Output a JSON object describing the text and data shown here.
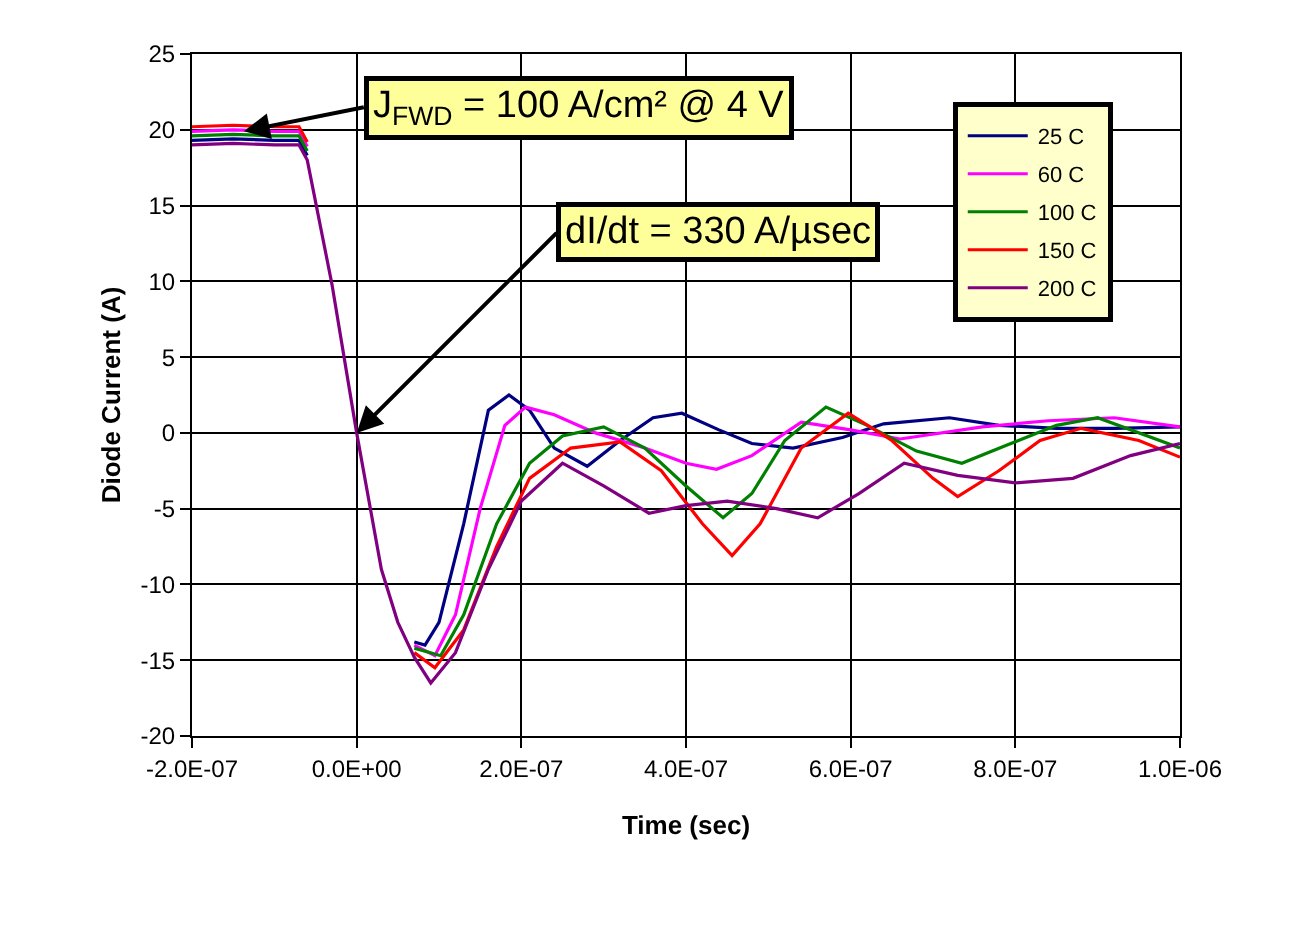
{
  "chart_data": {
    "type": "line",
    "xlabel": "Time (sec)",
    "ylabel": "Diode Current (A)",
    "xlim": [
      -2e-07,
      1e-06
    ],
    "xticks": [
      {
        "value": -2e-07,
        "label": "-2.0E-07"
      },
      {
        "value": 0,
        "label": "0.0E+00"
      },
      {
        "value": 2e-07,
        "label": "2.0E-07"
      },
      {
        "value": 4e-07,
        "label": "4.0E-07"
      },
      {
        "value": 6e-07,
        "label": "6.0E-07"
      },
      {
        "value": 8e-07,
        "label": "8.0E-07"
      },
      {
        "value": 1e-06,
        "label": "1.0E-06"
      }
    ],
    "ylim": [
      -20,
      25
    ],
    "yticks": [
      -20,
      -15,
      -10,
      -5,
      0,
      5,
      10,
      15,
      20,
      25
    ],
    "grid": true,
    "legend": "top right",
    "marker": "none",
    "line_style": "solid",
    "annotations": [
      {
        "text": "J$_{FWD}$ = 100 A/cm² @ 4 V",
        "x": -1.37e-07,
        "y": 19.9
      },
      {
        "text": "dI/dt = 330 A/µsec",
        "x": 0,
        "y": 0
      }
    ],
    "series": [
      {
        "name": "25 C",
        "color": "#000080",
        "x": [
          -2e-07,
          -1.5e-07,
          -1e-07,
          -7e-08,
          -6e-08,
          -3e-08,
          0,
          3e-08,
          5e-08,
          7e-08,
          8.3e-08,
          1e-07,
          1.3e-07,
          1.6e-07,
          1.85e-07,
          2.1e-07,
          2.4e-07,
          2.8e-07,
          3.2e-07,
          3.6e-07,
          3.95e-07,
          4.4e-07,
          4.8e-07,
          5.3e-07,
          5.9e-07,
          6.4e-07,
          7.2e-07,
          7.8e-07,
          8.5e-07,
          9.2e-07,
          1e-06
        ],
        "values": [
          19.3,
          19.4,
          19.3,
          19.3,
          18.3,
          null,
          null,
          null,
          null,
          -13.8,
          -14,
          -12.5,
          -6,
          1.5,
          2.5,
          1.5,
          -1,
          -2.2,
          -0.5,
          1,
          1.3,
          0.2,
          -0.7,
          -1,
          -0.3,
          0.6,
          1.0,
          0.5,
          0.3,
          0.3,
          0.4
        ]
      },
      {
        "name": "60 C",
        "color": "#ff00ff",
        "x": [
          -2e-07,
          -1.5e-07,
          -1e-07,
          -7e-08,
          -6e-08,
          -3e-08,
          0,
          3e-08,
          5e-08,
          7e-08,
          9.5e-08,
          1.2e-07,
          1.5e-07,
          1.8e-07,
          2.05e-07,
          2.4e-07,
          2.9e-07,
          3.5e-07,
          4e-07,
          4.37e-07,
          4.8e-07,
          5.4e-07,
          6e-07,
          6.6e-07,
          7.6e-07,
          8.4e-07,
          9.2e-07,
          1e-06
        ],
        "values": [
          19.9,
          20.0,
          19.9,
          19.9,
          18.9,
          null,
          null,
          null,
          null,
          -14,
          -14.7,
          -12,
          -5,
          0.5,
          1.7,
          1.2,
          0,
          -1,
          -2,
          -2.4,
          -1.5,
          0.7,
          0.2,
          -0.4,
          0.4,
          0.8,
          1,
          0.4
        ]
      },
      {
        "name": "100 C",
        "color": "#008000",
        "x": [
          -2e-07,
          -1.5e-07,
          -1e-07,
          -7e-08,
          -6e-08,
          -3e-08,
          0,
          3e-08,
          5e-08,
          7e-08,
          1.02e-07,
          1.3e-07,
          1.7e-07,
          2.1e-07,
          2.5e-07,
          3e-07,
          3.5e-07,
          4e-07,
          4.45e-07,
          4.8e-07,
          5.2e-07,
          5.7e-07,
          6.2e-07,
          6.8e-07,
          7.35e-07,
          7.9e-07,
          8.5e-07,
          9e-07,
          1e-06
        ],
        "values": [
          19.6,
          19.7,
          19.6,
          19.6,
          18.6,
          null,
          null,
          null,
          null,
          -14.2,
          -14.7,
          -12,
          -6,
          -2,
          -0.2,
          0.4,
          -1,
          -3.5,
          -5.6,
          -4,
          -0.5,
          1.7,
          0.5,
          -1.2,
          -2.0,
          -0.8,
          0.5,
          1.0,
          -1
        ]
      },
      {
        "name": "150 C",
        "color": "#ff0000",
        "x": [
          -2e-07,
          -1.5e-07,
          -1e-07,
          -7e-08,
          -6e-08,
          -3e-08,
          0,
          3e-08,
          5e-08,
          7e-08,
          9.5e-08,
          1.3e-07,
          1.7e-07,
          2.1e-07,
          2.6e-07,
          3.2e-07,
          3.7e-07,
          4.2e-07,
          4.56e-07,
          4.9e-07,
          5.4e-07,
          5.97e-07,
          6.5e-07,
          7e-07,
          7.3e-07,
          7.8e-07,
          8.3e-07,
          8.8e-07,
          9.5e-07,
          1e-06
        ],
        "values": [
          20.2,
          20.3,
          20.2,
          20.2,
          19.2,
          null,
          null,
          null,
          null,
          -14.5,
          -15.5,
          -13,
          -7.5,
          -3,
          -1,
          -0.6,
          -2.5,
          -6,
          -8.1,
          -6,
          -1,
          1.3,
          -0.5,
          -3,
          -4.2,
          -2.5,
          -0.5,
          0.3,
          -0.5,
          -1.6
        ]
      },
      {
        "name": "200 C",
        "color": "#800080",
        "x": [
          -2e-07,
          -1.5e-07,
          -1e-07,
          -7e-08,
          -6e-08,
          -3e-08,
          0,
          3e-08,
          5e-08,
          7e-08,
          9e-08,
          1.2e-07,
          1.6e-07,
          2e-07,
          2.5e-07,
          3e-07,
          3.55e-07,
          4e-07,
          4.5e-07,
          5.1e-07,
          5.6e-07,
          6.1e-07,
          6.65e-07,
          7.3e-07,
          8e-07,
          8.7e-07,
          9.4e-07,
          1e-06
        ],
        "values": [
          19.0,
          19.1,
          19.0,
          19.0,
          18.0,
          9.8,
          0,
          -9,
          -12.5,
          -14.8,
          -16.5,
          -14.5,
          -9,
          -4.5,
          -2,
          -3.5,
          -5.3,
          -4.8,
          -4.5,
          -5,
          -5.6,
          -4,
          -2,
          -2.8,
          -3.3,
          -3,
          -1.5,
          -0.7
        ]
      }
    ]
  }
}
